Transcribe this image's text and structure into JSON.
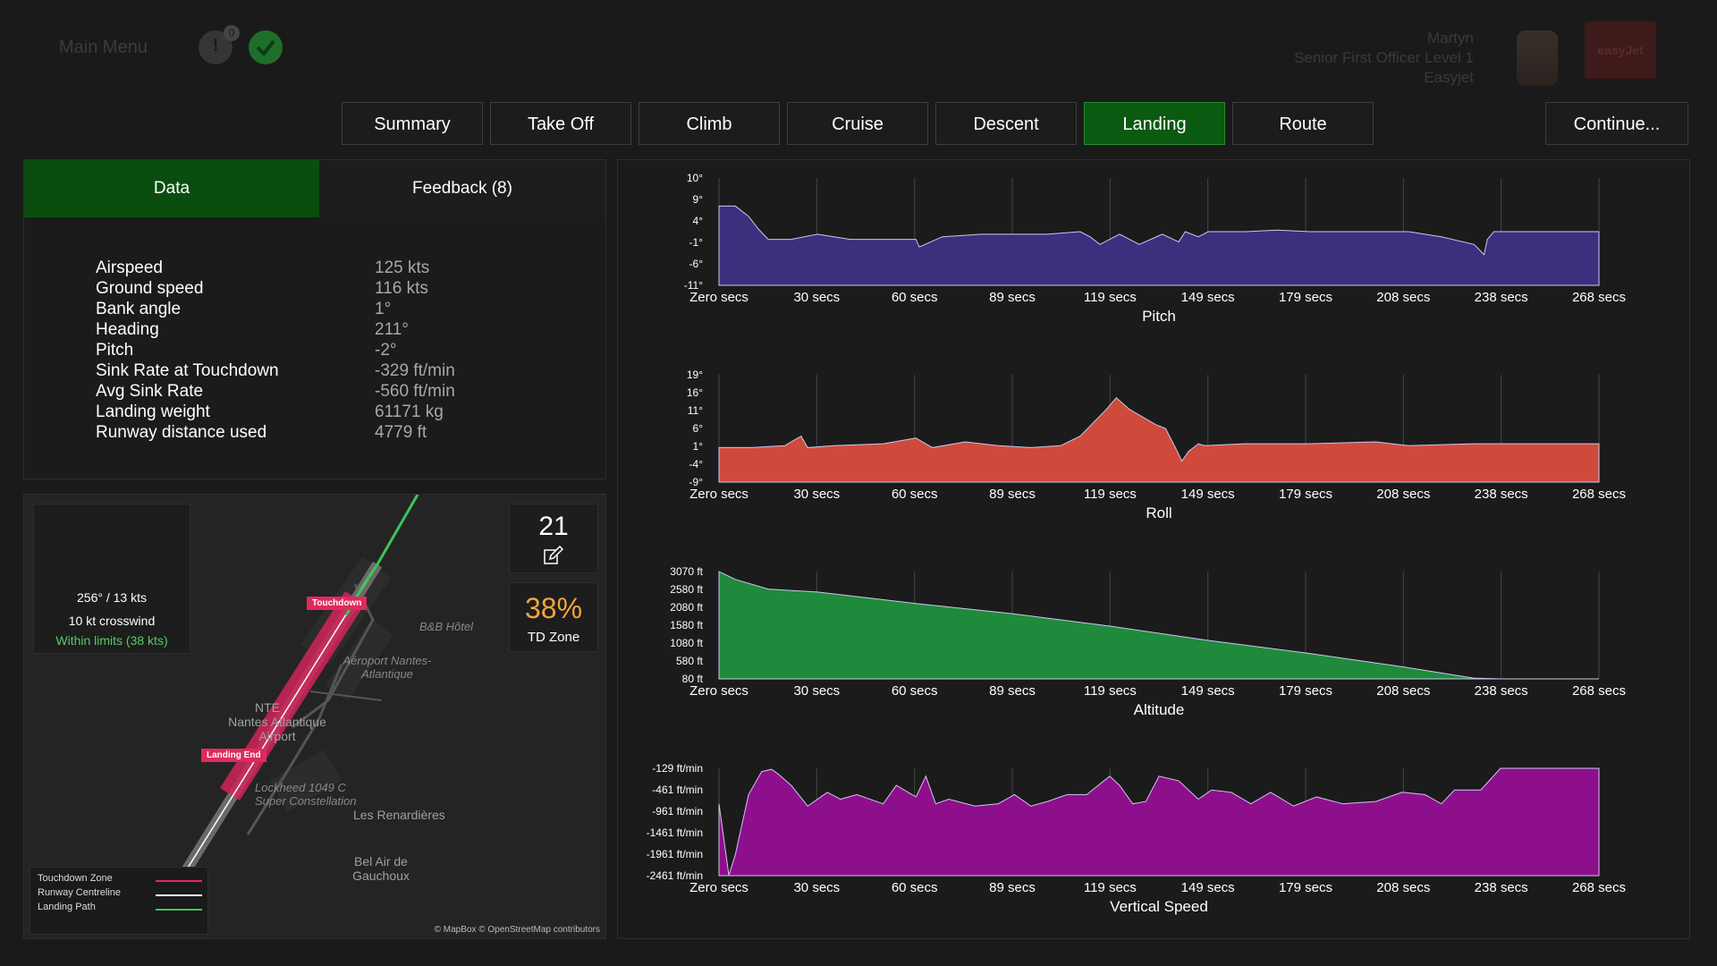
{
  "header": {
    "main_menu": "Main Menu",
    "notification_count": "0",
    "user_name": "Martyn",
    "user_role": "Senior First Officer Level 1",
    "user_airline": "Easyjet",
    "airline_logo": "easyJet"
  },
  "tabs": [
    {
      "label": "Summary"
    },
    {
      "label": "Take Off"
    },
    {
      "label": "Climb"
    },
    {
      "label": "Cruise"
    },
    {
      "label": "Descent"
    },
    {
      "label": "Landing",
      "active": true
    },
    {
      "label": "Route"
    }
  ],
  "continue_label": "Continue...",
  "subtabs": {
    "data": "Data",
    "feedback": "Feedback (8)"
  },
  "data_rows": [
    {
      "label": "Airspeed",
      "value": "125 kts"
    },
    {
      "label": "Ground speed",
      "value": "116 kts"
    },
    {
      "label": "Bank angle",
      "value": "1°"
    },
    {
      "label": "Heading",
      "value": "211°"
    },
    {
      "label": "Pitch",
      "value": "-2°"
    },
    {
      "label": "Sink Rate at Touchdown",
      "value": "-329 ft/min"
    },
    {
      "label": "Avg Sink Rate",
      "value": "-560 ft/min"
    },
    {
      "label": "Landing weight",
      "value": "61171 kg"
    },
    {
      "label": "Runway distance used",
      "value": "4779 ft"
    }
  ],
  "map": {
    "wind": "256° / 13 kts",
    "crosswind": "10 kt crosswind",
    "limits": "Within limits (38 kts)",
    "runway": "21",
    "td_percent": "38%",
    "td_label": "TD Zone",
    "touchdown_flag": "Touchdown",
    "landing_end_flag": "Landing End",
    "places": {
      "hotel": "B&B Hôtel",
      "airport_label": "Aéroport Nantes-Atlantique",
      "nte": "NTE",
      "airport_name": "Nantes Atlantique Airport",
      "lockheed": "Lockheed 1049 C Super Constellation",
      "renardieres": "Les Renardières",
      "belair": "Bel Air de Gauchoux"
    },
    "legend": {
      "touchdown_zone": "Touchdown Zone",
      "centreline": "Runway Centreline",
      "landing_path": "Landing Path"
    },
    "attribution": "© MapBox © OpenStreetMap contributors",
    "colors": {
      "touchdown_zone": "#e02a5c",
      "centreline": "#ffffff",
      "landing_path": "#3ec45a"
    }
  },
  "chart_data": [
    {
      "type": "area",
      "title": "Pitch",
      "color": "#3d2e7e",
      "x_ticks": [
        "Zero secs",
        "30 secs",
        "60 secs",
        "89 secs",
        "119 secs",
        "149 secs",
        "179 secs",
        "208 secs",
        "238 secs",
        "268 secs"
      ],
      "y_ticks": [
        "10°",
        "9°",
        "4°",
        "-1°",
        "-6°",
        "-11°"
      ],
      "ylim": [
        -11,
        10
      ],
      "x": [
        0,
        5,
        9,
        12,
        15,
        22,
        30,
        40,
        50,
        60,
        61,
        68,
        80,
        100,
        110,
        113,
        116,
        119,
        122,
        128,
        135,
        140,
        142,
        146,
        149,
        160,
        170,
        180,
        190,
        200,
        210,
        220,
        230,
        233,
        234,
        236,
        238,
        250,
        268
      ],
      "y": [
        4.5,
        4.5,
        2.5,
        0,
        -2,
        -2,
        -1,
        -2,
        -2,
        -2,
        -3.5,
        -1.5,
        -1,
        -1,
        -0.5,
        -1.5,
        -3,
        -2,
        -1,
        -3,
        -1,
        -2.5,
        -0.5,
        -1.5,
        -0.5,
        -0.5,
        -0.2,
        -0.5,
        -0.5,
        -0.5,
        -0.5,
        -1.5,
        -3,
        -5,
        -2,
        -0.5,
        -0.5,
        -0.5,
        -0.5
      ]
    },
    {
      "type": "area",
      "title": "Roll",
      "color": "#d04a3c",
      "x_ticks": [
        "Zero secs",
        "30 secs",
        "60 secs",
        "89 secs",
        "119 secs",
        "149 secs",
        "179 secs",
        "208 secs",
        "238 secs",
        "268 secs"
      ],
      "y_ticks": [
        "19°",
        "16°",
        "11°",
        "6°",
        "1°",
        "-4°",
        "-9°"
      ],
      "ylim": [
        -9,
        19
      ],
      "x": [
        0,
        10,
        20,
        25,
        27,
        35,
        50,
        60,
        65,
        75,
        85,
        95,
        104,
        110,
        118,
        121,
        125,
        129,
        133,
        136,
        139,
        141,
        143,
        146,
        148,
        160,
        180,
        200,
        210,
        230,
        250,
        268
      ],
      "y": [
        0,
        0,
        0.5,
        3,
        0,
        0.5,
        1,
        2.5,
        0,
        1.5,
        0.5,
        0,
        0.5,
        3,
        10,
        13,
        10,
        8,
        6,
        5,
        0,
        -3.5,
        -1,
        1,
        0.5,
        1,
        1,
        1.5,
        0.5,
        1,
        1,
        1
      ]
    },
    {
      "type": "area",
      "title": "Altitude",
      "color": "#1f8a3c",
      "x_ticks": [
        "Zero secs",
        "30 secs",
        "60 secs",
        "89 secs",
        "119 secs",
        "149 secs",
        "179 secs",
        "208 secs",
        "238 secs",
        "268 secs"
      ],
      "y_ticks": [
        "3070 ft",
        "2580 ft",
        "2080 ft",
        "1580 ft",
        "1080 ft",
        "580 ft",
        "80 ft"
      ],
      "ylim": [
        80,
        3070
      ],
      "x": [
        0,
        5,
        15,
        30,
        60,
        89,
        119,
        149,
        179,
        208,
        230,
        238,
        268
      ],
      "y": [
        3070,
        2850,
        2580,
        2500,
        2180,
        1900,
        1550,
        1150,
        800,
        420,
        100,
        80,
        80
      ]
    },
    {
      "type": "area",
      "title": "Vertical Speed",
      "color": "#8e0f8c",
      "x_ticks": [
        "Zero secs",
        "30 secs",
        "60 secs",
        "89 secs",
        "119 secs",
        "149 secs",
        "179 secs",
        "208 secs",
        "238 secs",
        "268 secs"
      ],
      "y_ticks": [
        "-129 ft/min",
        "-461 ft/min",
        "-961 ft/min",
        "-1461 ft/min",
        "-1961 ft/min",
        "-2461 ft/min"
      ],
      "ylim": [
        -2461,
        -129
      ],
      "x": [
        0,
        3,
        5,
        9,
        13,
        16,
        18,
        22,
        27,
        30,
        33,
        37,
        42,
        50,
        54,
        60,
        63,
        66,
        70,
        78,
        85,
        90,
        95,
        100,
        106,
        112,
        119,
        122,
        126,
        130,
        134,
        140,
        146,
        150,
        156,
        162,
        168,
        175,
        182,
        190,
        200,
        208,
        215,
        220,
        224,
        232,
        238,
        268
      ],
      "y": [
        -900,
        -2450,
        -2000,
        -700,
        -200,
        -150,
        -250,
        -500,
        -950,
        -800,
        -650,
        -800,
        -700,
        -900,
        -500,
        -750,
        -300,
        -900,
        -800,
        -950,
        -900,
        -700,
        -950,
        -850,
        -700,
        -700,
        -300,
        -500,
        -900,
        -850,
        -300,
        -400,
        -800,
        -600,
        -650,
        -900,
        -650,
        -950,
        -750,
        -900,
        -850,
        -650,
        -700,
        -900,
        -600,
        -600,
        -129,
        -129
      ]
    }
  ]
}
